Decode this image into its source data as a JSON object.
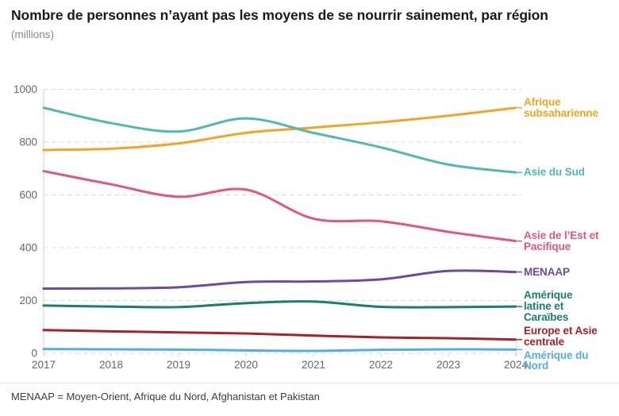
{
  "header": {
    "title": "Nombre de personnes n’ayant pas les moyens de se nourrir sainement, par région",
    "subtitle": "(millions)"
  },
  "footnote": "MENAAP = Moyen-Orient, Afrique du Nord, Afghanistan et Pakistan",
  "colors": {
    "title": "#1a1a1a",
    "subtitle": "#8a8a8a",
    "footnote": "#3d3d3d",
    "gridline": "#d9d9d9",
    "axis_line": "#cfcfcf",
    "tick_label": "#666666",
    "divider": "#e2e2e2",
    "background": "#ffffff"
  },
  "chart_data": {
    "type": "line",
    "title": "Nombre de personnes n’ayant pas les moyens de se nourrir sainement, par région",
    "unit_label": "(millions)",
    "x": [
      2017,
      2018,
      2019,
      2020,
      2021,
      2022,
      2023,
      2024
    ],
    "x_tick_labels": [
      "2017",
      "2018",
      "2019",
      "2020",
      "2021",
      "2022",
      "2023",
      "2024"
    ],
    "y_ticks": [
      0,
      200,
      400,
      600,
      800,
      1000
    ],
    "y_tick_labels": [
      "0",
      "200",
      "400",
      "600",
      "800",
      "1000"
    ],
    "ylim": [
      0,
      1000
    ],
    "grid": "horizontal-dashed",
    "legend_position": "right-edge-inline-labels",
    "series": [
      {
        "name": "Afrique subsaharienne",
        "label_lines": [
          "Afrique",
          "subsaharienne"
        ],
        "color": "#F5A325",
        "values": [
          770,
          775,
          795,
          835,
          855,
          875,
          900,
          930
        ]
      },
      {
        "name": "Asie du Sud",
        "label_lines": [
          "Asie du Sud"
        ],
        "color": "#4FB8B0",
        "values": [
          930,
          872,
          840,
          890,
          835,
          780,
          715,
          685
        ]
      },
      {
        "name": "Asie de l’Est et Pacifique",
        "label_lines": [
          "Asie de l’Est et",
          "Pacifique"
        ],
        "color": "#E0567F",
        "values": [
          690,
          640,
          593,
          620,
          510,
          500,
          460,
          425
        ]
      },
      {
        "name": "MENAAP",
        "label_lines": [
          "MENAAP"
        ],
        "color": "#6D48A4",
        "values": [
          245,
          246,
          250,
          270,
          272,
          280,
          312,
          308
        ]
      },
      {
        "name": "Amérique latine et Caraïbes",
        "label_lines": [
          "Amérique",
          "latine et",
          "Caraïbes"
        ],
        "color": "#16806C",
        "values": [
          181,
          177,
          175,
          190,
          196,
          176,
          175,
          177
        ]
      },
      {
        "name": "Europe et Asie centrale",
        "label_lines": [
          "Europe et Asie",
          "centrale"
        ],
        "color": "#A62225",
        "values": [
          88,
          83,
          79,
          75,
          67,
          60,
          57,
          52
        ]
      },
      {
        "name": "Amérique du Nord",
        "label_lines": [
          "Amérique du",
          "Nord"
        ],
        "color": "#55ACE4",
        "values": [
          16,
          15,
          14,
          11,
          9,
          13,
          15,
          14
        ]
      }
    ]
  }
}
